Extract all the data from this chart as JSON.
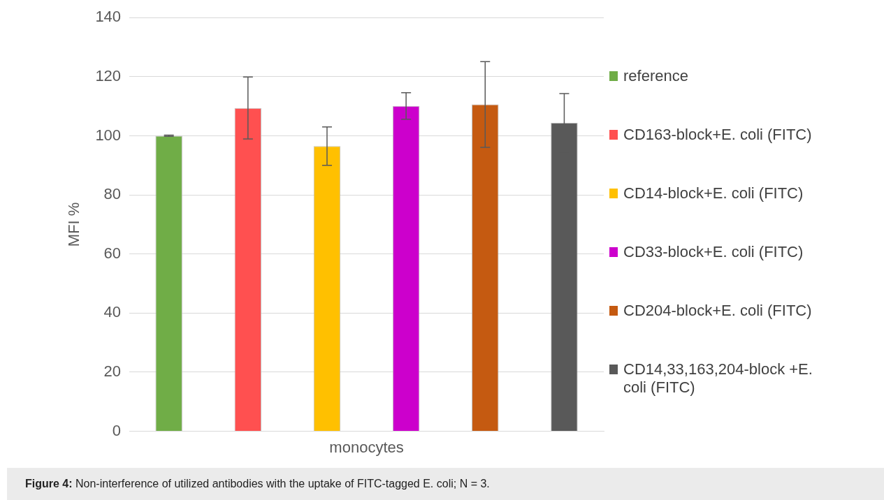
{
  "chart_data": {
    "type": "bar",
    "ylabel": "MFI %",
    "categories": [
      "monocytes"
    ],
    "series": [
      {
        "name": "reference",
        "color": "#70ad47",
        "values": [
          100
        ],
        "errors": [
          0.2
        ]
      },
      {
        "name": "CD163-block+E. coli (FITC)",
        "color": "#ff5050",
        "values": [
          109.4
        ],
        "errors": [
          10.5
        ]
      },
      {
        "name": "CD14-block+E. coli (FITC)",
        "color": "#ffc000",
        "values": [
          96.5
        ],
        "errors": [
          6.5
        ]
      },
      {
        "name": "CD33-block+E. coli (FITC)",
        "color": "#cc00cc",
        "values": [
          110.1
        ],
        "errors": [
          4.5
        ]
      },
      {
        "name": "CD204-block+E. coli (FITC)",
        "color": "#c55a11",
        "values": [
          110.6
        ],
        "errors": [
          14.5
        ]
      },
      {
        "name": "CD14,33,163,204-block +E. coli (FITC)",
        "color": "#595959",
        "values": [
          104.4
        ],
        "errors": [
          9.9
        ]
      }
    ],
    "ylim": [
      0,
      140
    ],
    "yticks": [
      0,
      20,
      40,
      60,
      80,
      100,
      120,
      140
    ],
    "grid": "y",
    "legend": "right",
    "annotations": [
      "Figure 4: Non-interference of utilized antibodies with the uptake of FITC-tagged E. coli; N = 3."
    ]
  }
}
